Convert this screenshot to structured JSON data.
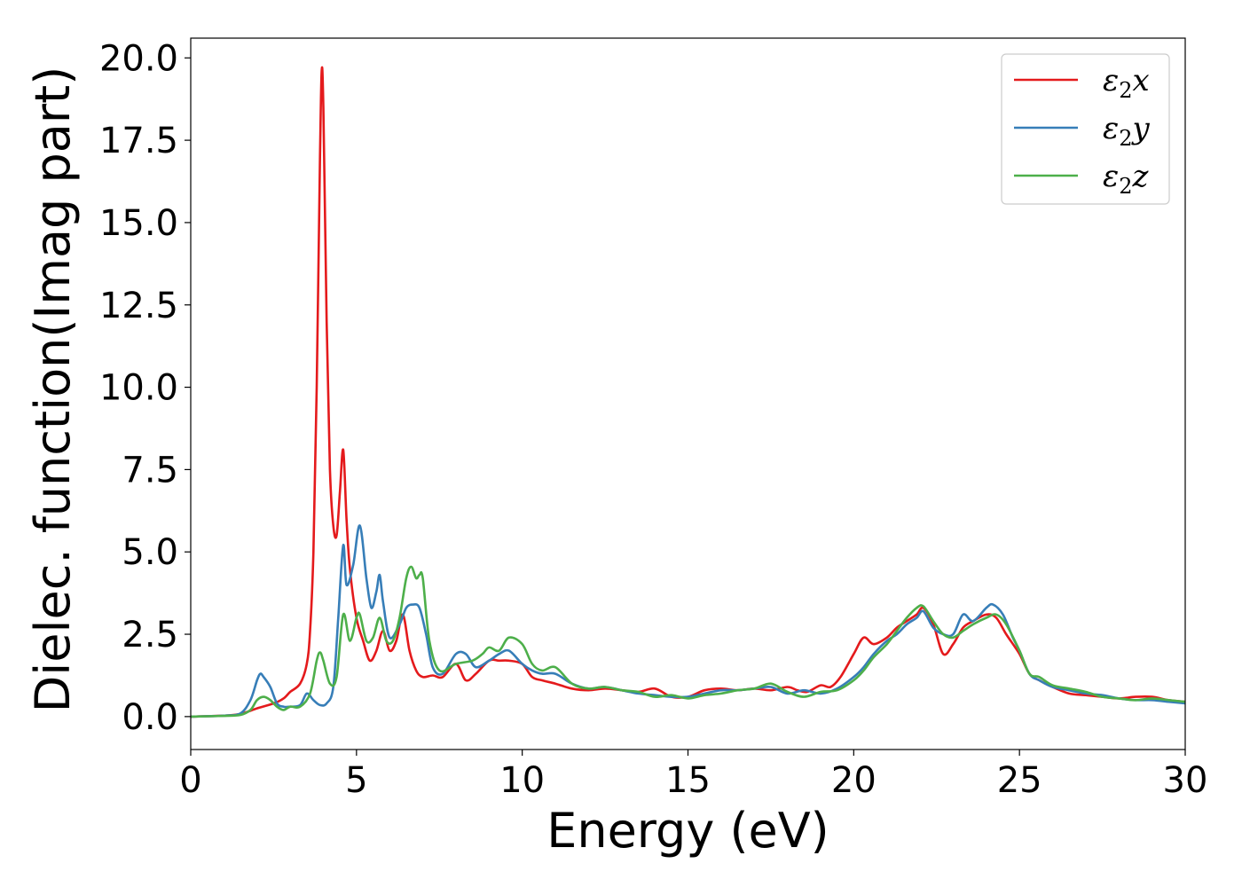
{
  "chart_data": {
    "type": "line",
    "title": "",
    "xlabel": "Energy (eV)",
    "ylabel": "Dielec. function(Imag part)",
    "xlim": [
      0,
      30
    ],
    "ylim": [
      -1.0,
      20.6
    ],
    "xticks": [
      0,
      5,
      10,
      15,
      20,
      25,
      30
    ],
    "xtick_labels": [
      "0",
      "5",
      "10",
      "15",
      "20",
      "25",
      "30"
    ],
    "yticks": [
      0.0,
      2.5,
      5.0,
      7.5,
      10.0,
      12.5,
      15.0,
      17.5,
      20.0
    ],
    "ytick_labels": [
      "0.0",
      "2.5",
      "5.0",
      "7.5",
      "10.0",
      "12.5",
      "15.0",
      "17.5",
      "20.0"
    ],
    "grid": false,
    "legend_position": "top-right",
    "series": [
      {
        "name": "ε2x",
        "legend_main": "ε",
        "legend_sub": "2",
        "legend_var": "x",
        "color": "#e41a1c",
        "x": [
          0,
          1.0,
          1.5,
          2.0,
          2.5,
          2.8,
          3.0,
          3.3,
          3.5,
          3.6,
          3.7,
          3.8,
          3.9,
          3.95,
          4.0,
          4.1,
          4.2,
          4.3,
          4.4,
          4.5,
          4.6,
          4.7,
          4.8,
          5.0,
          5.2,
          5.4,
          5.6,
          5.8,
          6.0,
          6.2,
          6.4,
          6.6,
          6.8,
          7.0,
          7.3,
          7.6,
          8.0,
          8.3,
          8.6,
          9.0,
          9.3,
          9.6,
          10.0,
          10.3,
          10.6,
          11.0,
          11.5,
          12.0,
          12.5,
          13.0,
          13.5,
          14.0,
          14.5,
          15.0,
          15.5,
          16.0,
          16.5,
          17.0,
          17.5,
          18.0,
          18.3,
          18.6,
          19.0,
          19.3,
          19.6,
          20.0,
          20.3,
          20.6,
          21.0,
          21.3,
          21.6,
          21.9,
          22.1,
          22.4,
          22.7,
          23.0,
          23.3,
          23.6,
          24.0,
          24.3,
          24.6,
          25.0,
          25.3,
          25.6,
          26.0,
          26.5,
          27.0,
          27.5,
          28.0,
          28.5,
          29.0,
          29.5,
          30.0
        ],
        "y": [
          0.0,
          0.03,
          0.08,
          0.25,
          0.4,
          0.55,
          0.75,
          1.0,
          1.6,
          2.6,
          5.0,
          10.0,
          17.0,
          19.6,
          18.5,
          12.0,
          7.5,
          5.8,
          5.5,
          6.8,
          8.1,
          6.0,
          4.5,
          3.0,
          2.3,
          1.7,
          2.0,
          2.6,
          2.0,
          2.3,
          3.1,
          2.0,
          1.4,
          1.2,
          1.25,
          1.2,
          1.6,
          1.1,
          1.3,
          1.7,
          1.7,
          1.7,
          1.6,
          1.2,
          1.1,
          1.0,
          0.85,
          0.8,
          0.85,
          0.8,
          0.75,
          0.85,
          0.6,
          0.6,
          0.8,
          0.85,
          0.8,
          0.85,
          0.8,
          0.9,
          0.8,
          0.75,
          0.95,
          0.9,
          1.2,
          1.9,
          2.4,
          2.2,
          2.4,
          2.7,
          2.9,
          3.1,
          3.3,
          2.8,
          1.9,
          2.2,
          2.7,
          2.9,
          3.1,
          3.0,
          2.5,
          1.9,
          1.3,
          1.1,
          0.9,
          0.7,
          0.65,
          0.6,
          0.55,
          0.6,
          0.6,
          0.5,
          0.45
        ]
      },
      {
        "name": "ε2y",
        "legend_main": "ε",
        "legend_sub": "2",
        "legend_var": "y",
        "color": "#377eb8",
        "x": [
          0,
          1.0,
          1.5,
          1.8,
          2.0,
          2.1,
          2.2,
          2.4,
          2.6,
          2.8,
          3.0,
          3.3,
          3.5,
          3.7,
          3.9,
          4.1,
          4.3,
          4.45,
          4.6,
          4.7,
          4.9,
          5.1,
          5.3,
          5.45,
          5.6,
          5.7,
          5.8,
          6.0,
          6.3,
          6.5,
          6.7,
          6.9,
          7.1,
          7.3,
          7.6,
          8.0,
          8.3,
          8.6,
          9.0,
          9.3,
          9.6,
          10.0,
          10.3,
          10.6,
          11.0,
          11.5,
          12.0,
          12.5,
          13.0,
          13.5,
          14.0,
          14.5,
          15.0,
          15.5,
          16.0,
          16.5,
          17.0,
          17.5,
          18.0,
          18.5,
          19.0,
          19.5,
          20.0,
          20.3,
          20.6,
          21.0,
          21.3,
          21.6,
          21.9,
          22.1,
          22.4,
          22.7,
          23.0,
          23.3,
          23.6,
          24.0,
          24.2,
          24.5,
          24.8,
          25.0,
          25.3,
          25.6,
          26.0,
          26.5,
          27.0,
          27.5,
          28.0,
          28.5,
          29.0,
          29.5,
          30.0
        ],
        "y": [
          0.0,
          0.03,
          0.1,
          0.5,
          1.1,
          1.3,
          1.2,
          0.9,
          0.4,
          0.3,
          0.3,
          0.35,
          0.7,
          0.5,
          0.35,
          0.4,
          0.9,
          3.0,
          5.2,
          4.0,
          4.6,
          5.8,
          4.2,
          3.3,
          3.8,
          4.3,
          3.5,
          2.4,
          2.8,
          3.3,
          3.4,
          3.3,
          2.5,
          1.5,
          1.3,
          1.9,
          1.9,
          1.5,
          1.7,
          1.9,
          2.0,
          1.6,
          1.4,
          1.3,
          1.3,
          1.0,
          0.85,
          0.9,
          0.8,
          0.7,
          0.65,
          0.6,
          0.6,
          0.7,
          0.8,
          0.8,
          0.85,
          0.9,
          0.7,
          0.8,
          0.7,
          0.85,
          1.2,
          1.5,
          1.9,
          2.3,
          2.5,
          2.8,
          3.0,
          3.2,
          2.7,
          2.5,
          2.5,
          3.1,
          2.9,
          3.3,
          3.4,
          3.1,
          2.4,
          2.0,
          1.3,
          1.1,
          0.9,
          0.8,
          0.7,
          0.65,
          0.55,
          0.5,
          0.5,
          0.45,
          0.4
        ]
      },
      {
        "name": "ε2z",
        "legend_main": "ε",
        "legend_sub": "2",
        "legend_var": "z",
        "color": "#4daf4a",
        "x": [
          0,
          1.0,
          1.5,
          1.8,
          2.0,
          2.2,
          2.4,
          2.6,
          2.8,
          3.0,
          3.3,
          3.6,
          3.8,
          3.9,
          4.0,
          4.2,
          4.4,
          4.6,
          4.8,
          5.0,
          5.1,
          5.3,
          5.5,
          5.7,
          5.9,
          6.1,
          6.3,
          6.5,
          6.65,
          6.8,
          6.9,
          7.0,
          7.2,
          7.5,
          8.0,
          8.5,
          8.8,
          9.0,
          9.3,
          9.6,
          10.0,
          10.3,
          10.6,
          11.0,
          11.5,
          12.0,
          12.5,
          13.0,
          13.5,
          14.0,
          14.5,
          15.0,
          15.5,
          16.0,
          16.5,
          17.0,
          17.5,
          18.0,
          18.5,
          19.0,
          19.5,
          20.0,
          20.3,
          20.6,
          21.0,
          21.3,
          21.6,
          21.9,
          22.1,
          22.4,
          22.7,
          23.0,
          23.3,
          23.6,
          24.0,
          24.3,
          24.6,
          25.0,
          25.3,
          25.6,
          26.0,
          26.5,
          27.0,
          27.5,
          28.0,
          28.5,
          29.0,
          29.5,
          30.0
        ],
        "y": [
          0.0,
          0.02,
          0.05,
          0.2,
          0.5,
          0.6,
          0.5,
          0.3,
          0.2,
          0.3,
          0.3,
          0.7,
          1.7,
          1.95,
          1.7,
          1.0,
          1.2,
          3.1,
          2.3,
          3.0,
          3.1,
          2.3,
          2.4,
          3.0,
          2.3,
          2.3,
          3.0,
          4.2,
          4.55,
          4.2,
          4.3,
          4.2,
          2.3,
          1.4,
          1.6,
          1.7,
          1.9,
          2.1,
          2.0,
          2.4,
          2.2,
          1.6,
          1.4,
          1.5,
          1.0,
          0.85,
          0.9,
          0.8,
          0.75,
          0.6,
          0.65,
          0.55,
          0.65,
          0.7,
          0.8,
          0.85,
          1.0,
          0.75,
          0.6,
          0.75,
          0.8,
          1.1,
          1.4,
          1.8,
          2.2,
          2.6,
          3.0,
          3.3,
          3.35,
          2.9,
          2.5,
          2.4,
          2.6,
          2.8,
          3.0,
          3.1,
          2.8,
          2.0,
          1.3,
          1.2,
          0.95,
          0.85,
          0.75,
          0.6,
          0.55,
          0.5,
          0.55,
          0.5,
          0.45
        ]
      }
    ]
  }
}
